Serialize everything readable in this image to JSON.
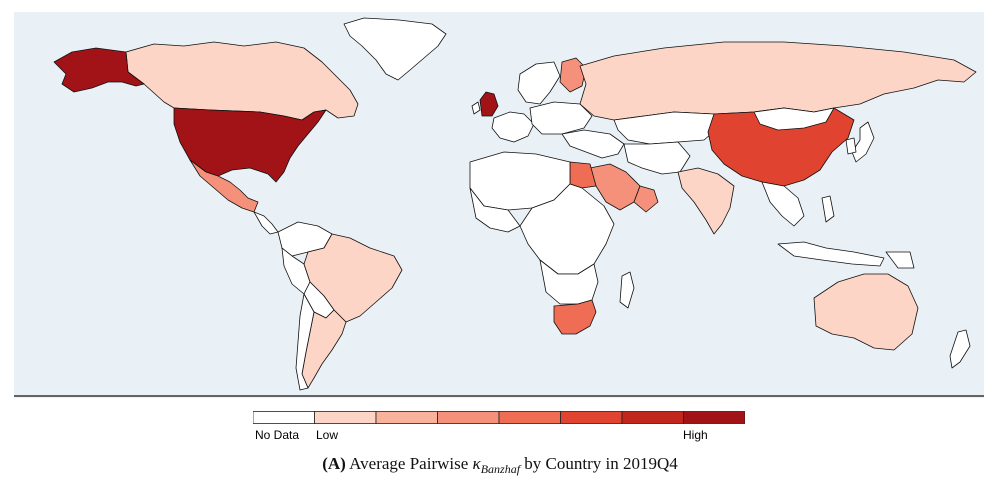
{
  "caption": {
    "label": "(A)",
    "text_before": "Average Pairwise ",
    "kappa": "κ",
    "subscript": "Banzhaf",
    "text_after": " by Country in 2019Q4"
  },
  "legend": {
    "no_data_label": "No Data",
    "low_label": "Low",
    "high_label": "High",
    "colors": [
      "#ffffff",
      "#fdd5c6",
      "#f9b29b",
      "#f5917a",
      "#ef6d55",
      "#e0432f",
      "#c1271d",
      "#a21318"
    ]
  },
  "colors": {
    "ocean": "#e9f1f6",
    "no_data": "#ffffff",
    "border": "#111111"
  },
  "map_data": {
    "scale": "8-class choropleth",
    "regions": [
      {
        "name": "United States",
        "level": 7
      },
      {
        "name": "Alaska",
        "level": 7
      },
      {
        "name": "United Kingdom",
        "level": 7
      },
      {
        "name": "China",
        "level": 5
      },
      {
        "name": "South Africa",
        "level": 4
      },
      {
        "name": "Egypt",
        "level": 4
      },
      {
        "name": "Mexico",
        "level": 3
      },
      {
        "name": "Saudi Arabia",
        "level": 3
      },
      {
        "name": "Oman",
        "level": 3
      },
      {
        "name": "Finland",
        "level": 3
      },
      {
        "name": "Canada",
        "level": 1
      },
      {
        "name": "Russia",
        "level": 1
      },
      {
        "name": "Brazil",
        "level": 1
      },
      {
        "name": "Australia",
        "level": 1
      },
      {
        "name": "India",
        "level": 1
      },
      {
        "name": "Argentina",
        "level": 1
      },
      {
        "name": "Chile",
        "level": 0
      },
      {
        "name": "Greenland",
        "level": 0
      },
      {
        "name": "Africa (most)",
        "level": 0
      },
      {
        "name": "Kazakhstan",
        "level": 0
      }
    ]
  }
}
